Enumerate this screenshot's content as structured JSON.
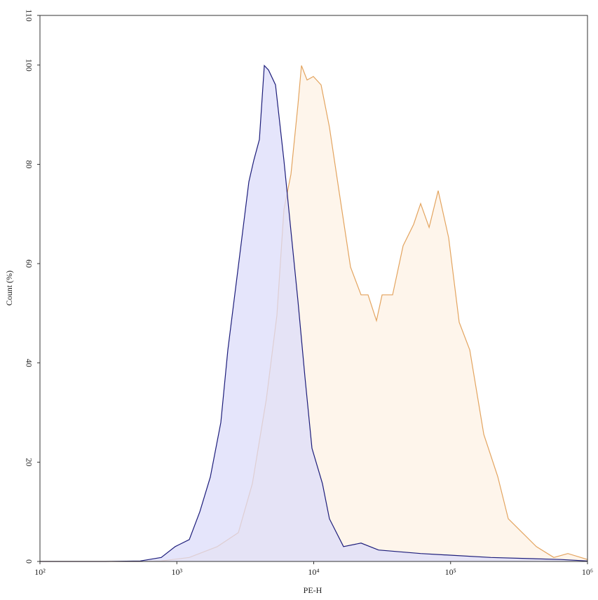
{
  "chart_data": {
    "type": "histogram-overlay",
    "x_label": "PE-H",
    "y_label": "Count (%)",
    "xscale": "log",
    "xlim": [
      100,
      1000000
    ],
    "xticks": [
      {
        "value": 100,
        "label": "10²"
      },
      {
        "value": 1000,
        "label": "10³"
      },
      {
        "value": 10000,
        "label": "10⁴"
      },
      {
        "value": 100000,
        "label": "10⁵"
      },
      {
        "value": 1000000,
        "label": "10⁶"
      }
    ],
    "ylim": [
      0,
      110
    ],
    "yticks": [
      0,
      20,
      40,
      60,
      80,
      100,
      110
    ],
    "series": [
      {
        "color": "#e3a45f",
        "fill": "#fdf1e4",
        "x": [
          100,
          540,
          769,
          1233,
          1977,
          2814,
          3562,
          4508,
          5387,
          6057,
          6817,
          7672,
          8135,
          8936,
          9937,
          11320,
          13030,
          15560,
          18580,
          22170,
          24950,
          28730,
          31570,
          37680,
          44970,
          53680,
          60420,
          69660,
          81130,
          96820,
          115600,
          138000,
          174700,
          220900,
          263700,
          334000,
          422600,
          567500,
          719000,
          1000000
        ],
        "values": [
          0,
          0,
          0.1,
          0.8,
          3,
          5.8,
          15.7,
          32.7,
          49.6,
          70.9,
          78,
          92,
          99.9,
          97,
          97.7,
          96,
          87.5,
          73.3,
          59.3,
          53.7,
          53.7,
          48.5,
          53.7,
          53.7,
          63.6,
          67.9,
          72.1,
          67.3,
          74.7,
          65.2,
          48.2,
          42.6,
          25.6,
          17.1,
          8.6,
          5.8,
          3,
          0.8,
          1.6,
          0.4
        ]
      },
      {
        "color": "#1c1c7a",
        "fill": "#dcdcfa",
        "x": [
          100,
          166,
          299,
          540,
          769,
          973,
          1233,
          1472,
          1757,
          2096,
          2358,
          2814,
          3358,
          3648,
          4009,
          4355,
          4673,
          5260,
          6057,
          6817,
          7672,
          8635,
          9710,
          11580,
          13030,
          16510,
          22170,
          29770,
          60420,
          196500,
          638600,
          1000000
        ],
        "values": [
          0,
          0,
          0,
          0.1,
          0.8,
          3,
          4.4,
          10,
          17,
          28,
          42.6,
          59.5,
          76.5,
          80.8,
          85,
          99.9,
          99,
          96,
          80.8,
          66.6,
          52.5,
          37,
          22.8,
          15.7,
          8.6,
          3,
          3.7,
          2.3,
          1.6,
          0.8,
          0.4,
          0.1
        ]
      }
    ]
  }
}
